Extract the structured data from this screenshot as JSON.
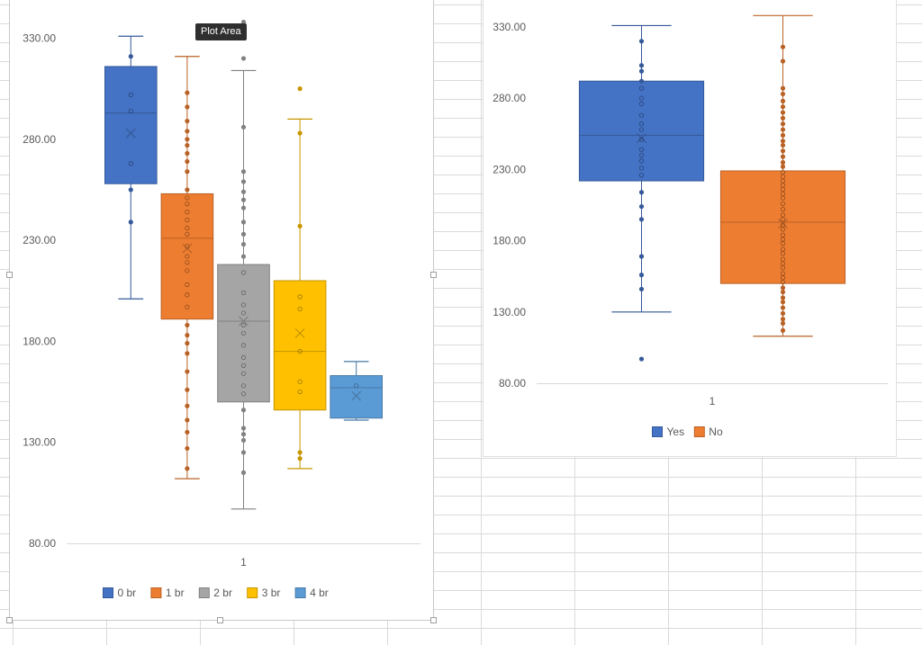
{
  "tooltip": "Plot Area",
  "chart_data": [
    {
      "type": "boxplot",
      "categories": [
        "1"
      ],
      "ylim": [
        80,
        340
      ],
      "yticks": [
        80,
        130,
        180,
        230,
        280,
        330
      ],
      "tick_labels": [
        "80.00",
        "130.00",
        "180.00",
        "230.00",
        "280.00",
        "330.00"
      ],
      "legend_position": "bottom",
      "grid": false,
      "series": [
        {
          "name": "0 br",
          "color": "#4472C4",
          "min": 201,
          "q1": 258,
          "median": 293,
          "q3": 316,
          "max": 331,
          "mean": 283,
          "points": [
            321,
            302,
            294,
            268,
            255,
            239
          ]
        },
        {
          "name": "1 br",
          "color": "#ED7D31",
          "min": 112,
          "q1": 191,
          "median": 231,
          "q3": 253,
          "max": 321,
          "mean": 226,
          "points": [
            303,
            296,
            289,
            284,
            280,
            277,
            273,
            269,
            264,
            255,
            251,
            248,
            244,
            240,
            236,
            233,
            227,
            222,
            219,
            215,
            208,
            203,
            197,
            188,
            183,
            179,
            174,
            165,
            156,
            148,
            141,
            135,
            127,
            117
          ]
        },
        {
          "name": "2 br",
          "color": "#A5A5A5",
          "min": 97,
          "q1": 150,
          "median": 190,
          "q3": 218,
          "max": 314,
          "mean": 190,
          "points": [
            338,
            320,
            286,
            264,
            259,
            254,
            250,
            246,
            239,
            233,
            228,
            222,
            214,
            204,
            198,
            194,
            188,
            184,
            178,
            172,
            168,
            164,
            158,
            154,
            146,
            137,
            134,
            131,
            125,
            115
          ]
        },
        {
          "name": "3 br",
          "color": "#FFC000",
          "min": 117,
          "q1": 146,
          "median": 175,
          "q3": 210,
          "max": 290,
          "mean": 184,
          "points": [
            305,
            283,
            237,
            202,
            196,
            175,
            160,
            155,
            125,
            122
          ]
        },
        {
          "name": "4 br",
          "color": "#5B9BD5",
          "min": 141,
          "q1": 142,
          "median": 157,
          "q3": 163,
          "max": 170,
          "mean": 153,
          "points": [
            158
          ]
        }
      ]
    },
    {
      "type": "boxplot",
      "categories": [
        "1"
      ],
      "ylim": [
        80,
        340
      ],
      "yticks": [
        80,
        130,
        180,
        230,
        280,
        330
      ],
      "tick_labels": [
        "80.00",
        "130.00",
        "180.00",
        "230.00",
        "280.00",
        "330.00"
      ],
      "legend_position": "bottom",
      "grid": false,
      "series": [
        {
          "name": "Yes",
          "color": "#4472C4",
          "min": 130,
          "q1": 222,
          "median": 254,
          "q3": 292,
          "max": 331,
          "mean": 252,
          "points": [
            320,
            303,
            299,
            292,
            287,
            280,
            276,
            268,
            262,
            258,
            251,
            244,
            240,
            236,
            231,
            226,
            214,
            204,
            195,
            169,
            156,
            146,
            97
          ]
        },
        {
          "name": "No",
          "color": "#ED7D31",
          "min": 113,
          "q1": 150,
          "median": 193,
          "q3": 229,
          "max": 338,
          "mean": 192,
          "points": [
            316,
            306,
            287,
            283,
            278,
            274,
            270,
            266,
            262,
            258,
            254,
            250,
            247,
            243,
            239,
            235,
            232,
            228,
            225,
            222,
            219,
            216,
            213,
            210,
            206,
            202,
            198,
            195,
            191,
            188,
            184,
            181,
            178,
            174,
            171,
            167,
            164,
            161,
            157,
            154,
            151,
            147,
            144,
            140,
            137,
            133,
            129,
            125,
            122,
            117
          ]
        }
      ]
    }
  ]
}
